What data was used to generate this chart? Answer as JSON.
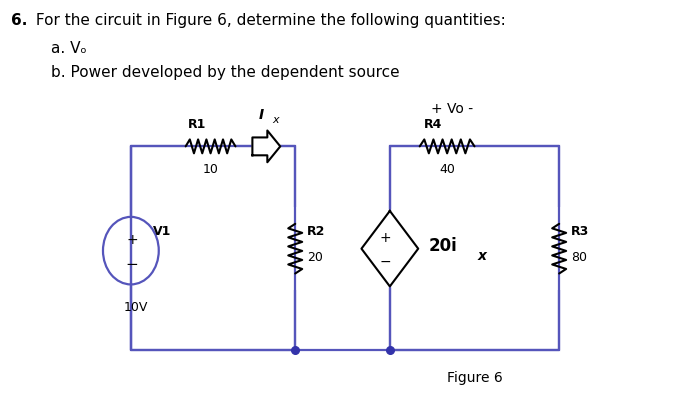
{
  "title_bold": "6.",
  "title_text": " For the circuit in Figure 6, determine the following quantities:",
  "sub_a": "a. Vₒ",
  "sub_b": "b. Power developed by the dependent source",
  "figure_label": "Figure 6",
  "circuit_color": "#5555bb",
  "dot_color": "#3333aa",
  "resistor_color": "#000000",
  "text_color": "#000000",
  "background": "#ffffff",
  "R1_label": "R1",
  "R1_val": "10",
  "R2_label": "R2",
  "R2_val": "20",
  "R3_label": "R3",
  "R3_val": "80",
  "R4_label": "R4",
  "R4_val": "40",
  "V1_label": "V1",
  "V1_val": "10V",
  "dep_label": "20i",
  "dep_label_sub": "x",
  "ix_label": "I",
  "ix_label_sub": "x",
  "vo_label": "+ Vo -"
}
